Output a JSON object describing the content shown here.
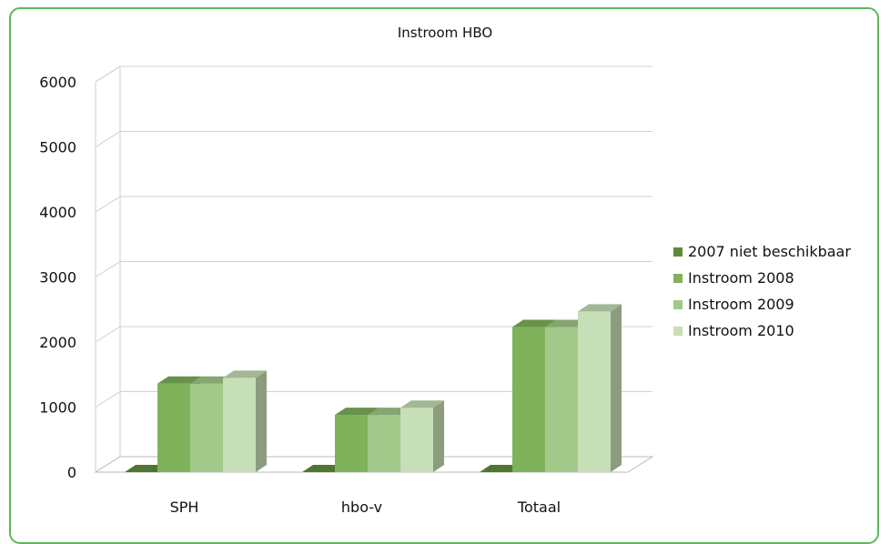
{
  "chart_data": {
    "type": "bar",
    "title": "Instroom HBO",
    "categories": [
      "SPH",
      "hbo-v",
      "Totaal"
    ],
    "series": [
      {
        "name": "2007 niet beschikbaar",
        "values": [
          0,
          0,
          0
        ],
        "color": "#5f8a3a"
      },
      {
        "name": "Instroom 2008",
        "values": [
          1360,
          880,
          2230
        ],
        "color": "#7fb25a"
      },
      {
        "name": "Instroom 2009",
        "values": [
          1360,
          880,
          2230
        ],
        "color": "#a2c98a"
      },
      {
        "name": "Instroom 2010",
        "values": [
          1450,
          990,
          2470
        ],
        "color": "#c6dfb6"
      }
    ],
    "ylim": [
      0,
      6000
    ],
    "yticks": [
      0,
      1000,
      2000,
      3000,
      4000,
      5000,
      6000
    ],
    "grid": true,
    "legend_position": "right"
  }
}
